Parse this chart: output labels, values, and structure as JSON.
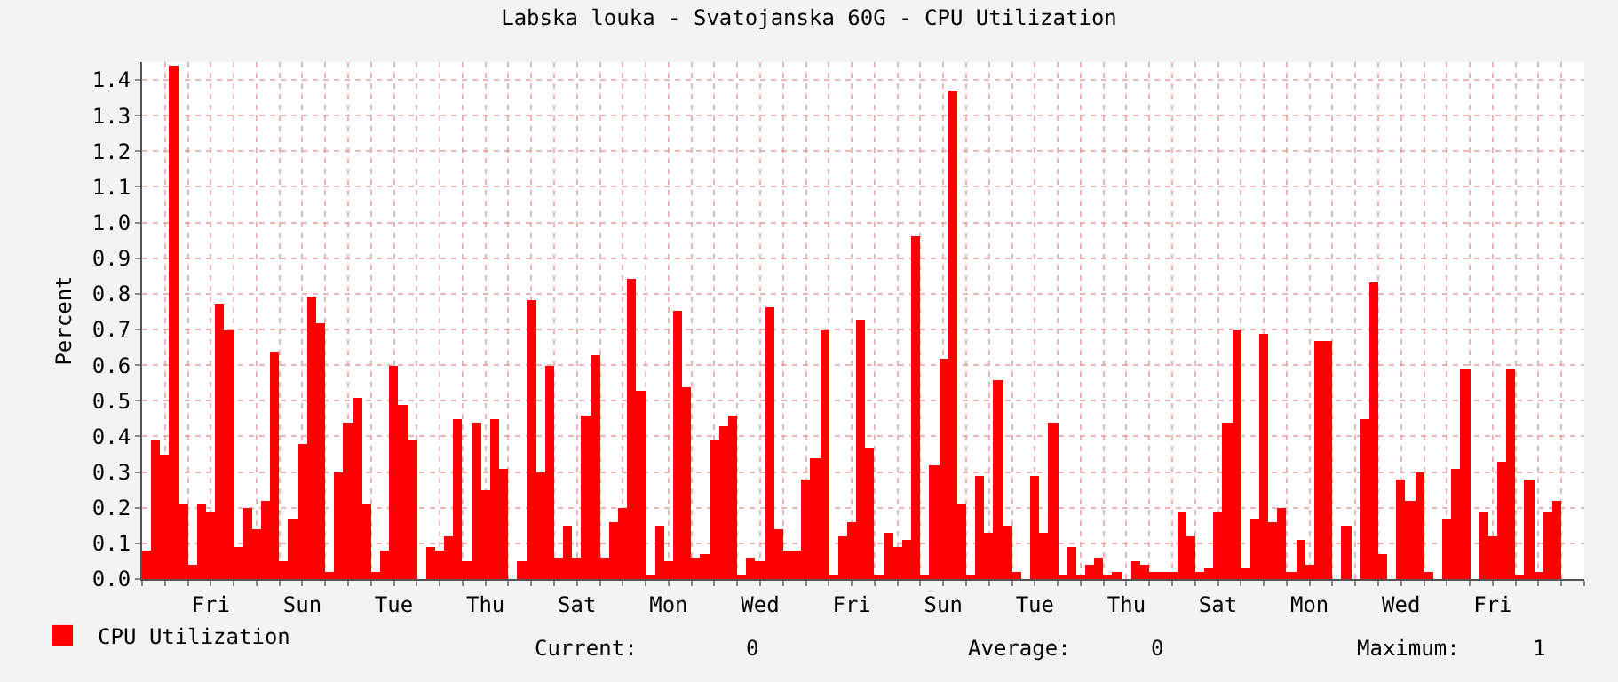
{
  "chart_data": {
    "type": "bar",
    "title": "Labska louka - Svatojanska 60G - CPU Utilization",
    "ylabel": "Percent",
    "categories": [
      null,
      null,
      null,
      null,
      null,
      null,
      null,
      "Fri",
      null,
      null,
      null,
      null,
      null,
      null,
      null,
      null,
      null,
      "Sun",
      null,
      null,
      null,
      null,
      null,
      null,
      null,
      null,
      null,
      "Tue",
      null,
      null,
      null,
      null,
      null,
      null,
      null,
      null,
      null,
      "Thu",
      null,
      null,
      null,
      null,
      null,
      null,
      null,
      null,
      null,
      "Sat",
      null,
      null,
      null,
      null,
      null,
      null,
      null,
      null,
      null,
      "Mon",
      null,
      null,
      null,
      null,
      null,
      null,
      null,
      null,
      null,
      "Wed",
      null,
      null,
      null,
      null,
      null,
      null,
      null,
      null,
      null,
      "Fri",
      null,
      null,
      null,
      null,
      null,
      null,
      null,
      null,
      null,
      "Sun",
      null,
      null,
      null,
      null,
      null,
      null,
      null,
      null,
      null,
      "Tue",
      null,
      null,
      null,
      null,
      null,
      null,
      null,
      null,
      null,
      "Thu",
      null,
      null,
      null,
      null,
      null,
      null,
      null,
      null,
      null,
      "Sat",
      null,
      null,
      null,
      null,
      null,
      null,
      null,
      null,
      null,
      "Mon",
      null,
      null,
      null,
      null,
      null,
      null,
      null,
      null,
      null,
      "Wed",
      null,
      null,
      null,
      null,
      null,
      null,
      null,
      null,
      null,
      "Fri",
      null,
      null,
      null,
      null,
      null,
      null,
      null
    ],
    "series": [
      {
        "name": "CPU Utilization",
        "color": "#ff0000",
        "values": [
          0.08,
          0.39,
          0.35,
          1.44,
          0.21,
          0.04,
          0.21,
          0.19,
          0.77,
          0.7,
          0.09,
          0.2,
          0.14,
          0.22,
          0.64,
          0.05,
          0.17,
          0.38,
          0.79,
          0.72,
          0.02,
          0.3,
          0.44,
          0.51,
          0.21,
          0.02,
          0.08,
          0.6,
          0.49,
          0.39,
          null,
          0.09,
          0.08,
          0.12,
          0.45,
          0.05,
          0.44,
          0.25,
          0.45,
          0.31,
          null,
          0.05,
          0.78,
          0.3,
          0.6,
          0.06,
          0.15,
          0.06,
          0.46,
          0.63,
          0.06,
          0.16,
          0.2,
          0.84,
          0.53,
          0.01,
          0.15,
          0.05,
          0.75,
          0.54,
          0.06,
          0.07,
          0.39,
          0.43,
          0.46,
          0.01,
          0.06,
          0.05,
          0.76,
          0.14,
          0.08,
          0.08,
          0.28,
          0.34,
          0.7,
          0.01,
          0.12,
          0.16,
          0.73,
          0.37,
          0.01,
          0.13,
          0.09,
          0.11,
          0.96,
          0.01,
          0.32,
          0.62,
          1.37,
          0.21,
          0.01,
          0.29,
          0.13,
          0.56,
          0.15,
          0.02,
          null,
          0.29,
          0.13,
          0.44,
          0.01,
          0.09,
          0.01,
          0.04,
          0.06,
          0.01,
          0.02,
          null,
          0.05,
          0.04,
          0.02,
          0.02,
          0.02,
          0.19,
          0.12,
          0.02,
          0.03,
          0.19,
          0.44,
          0.7,
          0.03,
          0.17,
          0.69,
          0.16,
          0.2,
          0.02,
          0.11,
          0.04,
          0.67,
          0.67,
          null,
          0.15,
          null,
          0.45,
          0.83,
          0.07,
          null,
          0.28,
          0.22,
          0.3,
          0.02,
          null,
          0.17,
          0.31,
          0.59,
          null,
          0.19,
          0.12,
          0.33,
          0.59,
          0.01,
          0.28,
          0.02,
          0.19,
          0.22
        ]
      }
    ],
    "ylim": [
      0,
      1.45
    ],
    "yticks": [
      {
        "value": 0,
        "label": "0.0"
      },
      0.1,
      0.2,
      0.3,
      0.4,
      0.5,
      0.6,
      0.7,
      0.8,
      0.9,
      {
        "value": 1,
        "label": "1.0"
      },
      1.1,
      1.2,
      1.3,
      1.4
    ],
    "grid": true,
    "legend": "bottom left",
    "annotations": [
      "Current:",
      "0",
      "Average:",
      "0",
      "Maximum:",
      "1"
    ]
  }
}
